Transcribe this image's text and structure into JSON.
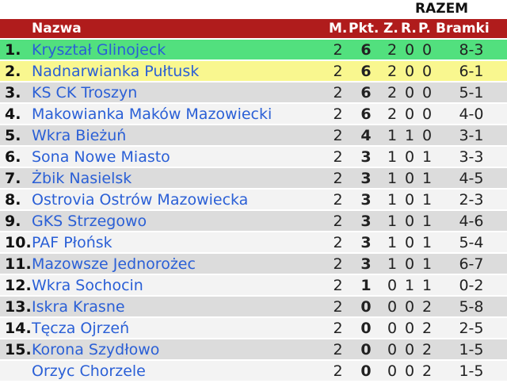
{
  "header": {
    "group": "RAZEM",
    "name": "Nazwa",
    "m": "M.",
    "pkt": "Pkt.",
    "z": "Z.",
    "r": "R.",
    "p": "P.",
    "bramki": "Bramki"
  },
  "colors": {
    "header": "#b01c1c",
    "promotion": "#52e07e",
    "second": "#f9f78f",
    "link": "#2a5fd6"
  },
  "rows": [
    {
      "pos": "1.",
      "name": "Kryształ Glinojeck",
      "m": "2",
      "pkt": "6",
      "z": "2",
      "r": "0",
      "p": "0",
      "bramki": "8-3"
    },
    {
      "pos": "2.",
      "name": "Nadnarwianka Pułtusk",
      "m": "2",
      "pkt": "6",
      "z": "2",
      "r": "0",
      "p": "0",
      "bramki": "6-1"
    },
    {
      "pos": "3.",
      "name": "KS CK Troszyn",
      "m": "2",
      "pkt": "6",
      "z": "2",
      "r": "0",
      "p": "0",
      "bramki": "5-1"
    },
    {
      "pos": "4.",
      "name": "Makowianka Maków Mazowiecki",
      "m": "2",
      "pkt": "6",
      "z": "2",
      "r": "0",
      "p": "0",
      "bramki": "4-0"
    },
    {
      "pos": "5.",
      "name": "Wkra Bieżuń",
      "m": "2",
      "pkt": "4",
      "z": "1",
      "r": "1",
      "p": "0",
      "bramki": "3-1"
    },
    {
      "pos": "6.",
      "name": "Sona Nowe Miasto",
      "m": "2",
      "pkt": "3",
      "z": "1",
      "r": "0",
      "p": "1",
      "bramki": "3-3"
    },
    {
      "pos": "7.",
      "name": "Żbik Nasielsk",
      "m": "2",
      "pkt": "3",
      "z": "1",
      "r": "0",
      "p": "1",
      "bramki": "4-5"
    },
    {
      "pos": "8.",
      "name": "Ostrovia Ostrów Mazowiecka",
      "m": "2",
      "pkt": "3",
      "z": "1",
      "r": "0",
      "p": "1",
      "bramki": "2-3"
    },
    {
      "pos": "9.",
      "name": "GKS Strzegowo",
      "m": "2",
      "pkt": "3",
      "z": "1",
      "r": "0",
      "p": "1",
      "bramki": "4-6"
    },
    {
      "pos": "10.",
      "name": "PAF Płońsk",
      "m": "2",
      "pkt": "3",
      "z": "1",
      "r": "0",
      "p": "1",
      "bramki": "5-4"
    },
    {
      "pos": "11.",
      "name": "Mazowsze Jednorożec",
      "m": "2",
      "pkt": "3",
      "z": "1",
      "r": "0",
      "p": "1",
      "bramki": "6-7"
    },
    {
      "pos": "12.",
      "name": "Wkra Sochocin",
      "m": "2",
      "pkt": "1",
      "z": "0",
      "r": "1",
      "p": "1",
      "bramki": "0-2"
    },
    {
      "pos": "13.",
      "name": "Iskra Krasne",
      "m": "2",
      "pkt": "0",
      "z": "0",
      "r": "0",
      "p": "2",
      "bramki": "5-8"
    },
    {
      "pos": "14.",
      "name": "Tęcza Ojrzeń",
      "m": "2",
      "pkt": "0",
      "z": "0",
      "r": "0",
      "p": "2",
      "bramki": "2-5"
    },
    {
      "pos": "15.",
      "name": "Korona Szydłowo",
      "m": "2",
      "pkt": "0",
      "z": "0",
      "r": "0",
      "p": "2",
      "bramki": "1-5"
    },
    {
      "pos": "",
      "name": "Orzyc Chorzele",
      "m": "2",
      "pkt": "0",
      "z": "0",
      "r": "0",
      "p": "2",
      "bramki": "1-5"
    }
  ]
}
